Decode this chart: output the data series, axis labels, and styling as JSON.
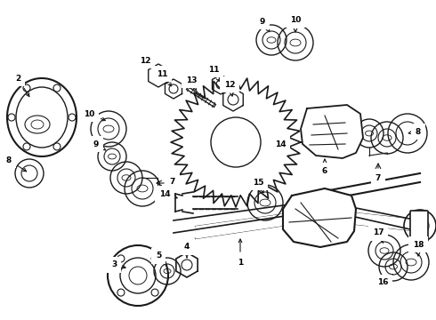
{
  "bg_color": "#ffffff",
  "line_color": "#1a1a1a",
  "label_color": "#000000",
  "label_fontsize": 6.5,
  "label_bold": true,
  "figsize": [
    4.9,
    3.6
  ],
  "dpi": 100
}
